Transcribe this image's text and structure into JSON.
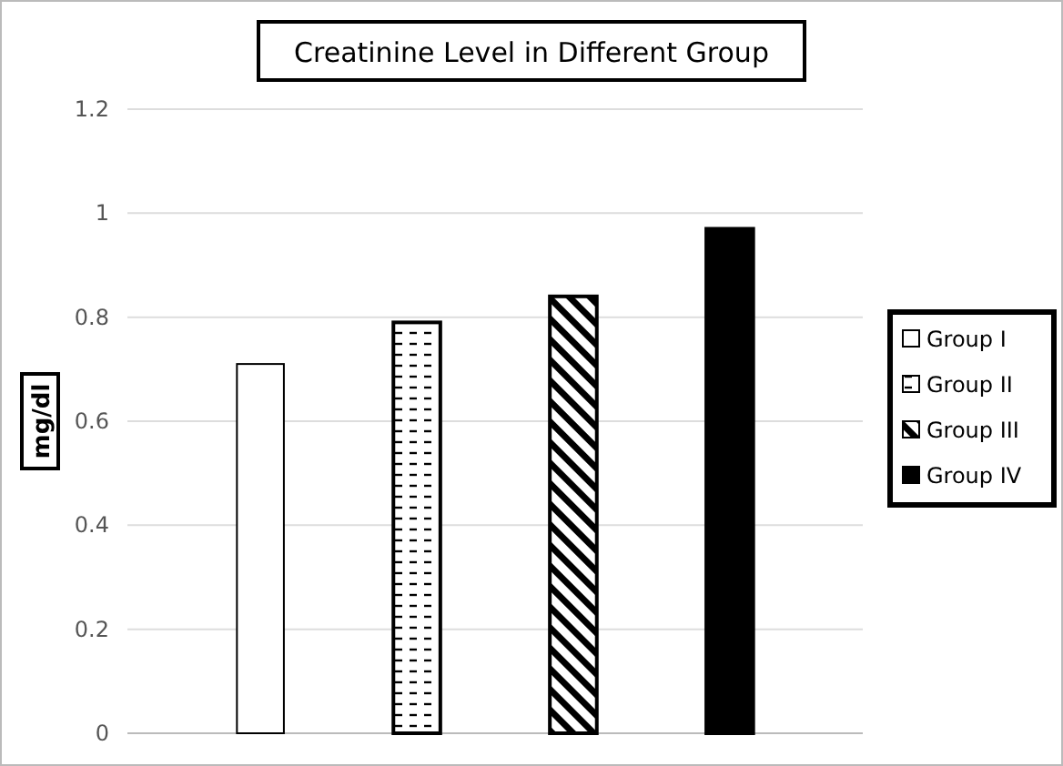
{
  "chart_data": {
    "type": "bar",
    "title": "Creatinine Level in Different Group",
    "ylabel": "mg/dl",
    "categories": [
      null
    ],
    "series": [
      {
        "name": "Group I",
        "color": "#ffffff",
        "values": [
          0.71
        ]
      },
      {
        "name": "Group II",
        "color": "#000000",
        "values": [
          0.79
        ]
      },
      {
        "name": "Group III",
        "color": "#000000",
        "values": [
          0.84
        ]
      },
      {
        "name": "Group IV",
        "color": "#000000",
        "values": [
          0.97
        ]
      }
    ],
    "ylim": [
      0,
      1.2
    ],
    "yticks": [
      0,
      0.2,
      0.4,
      0.6,
      0.8,
      1,
      1.2
    ],
    "grid": "y",
    "legend": "right"
  }
}
